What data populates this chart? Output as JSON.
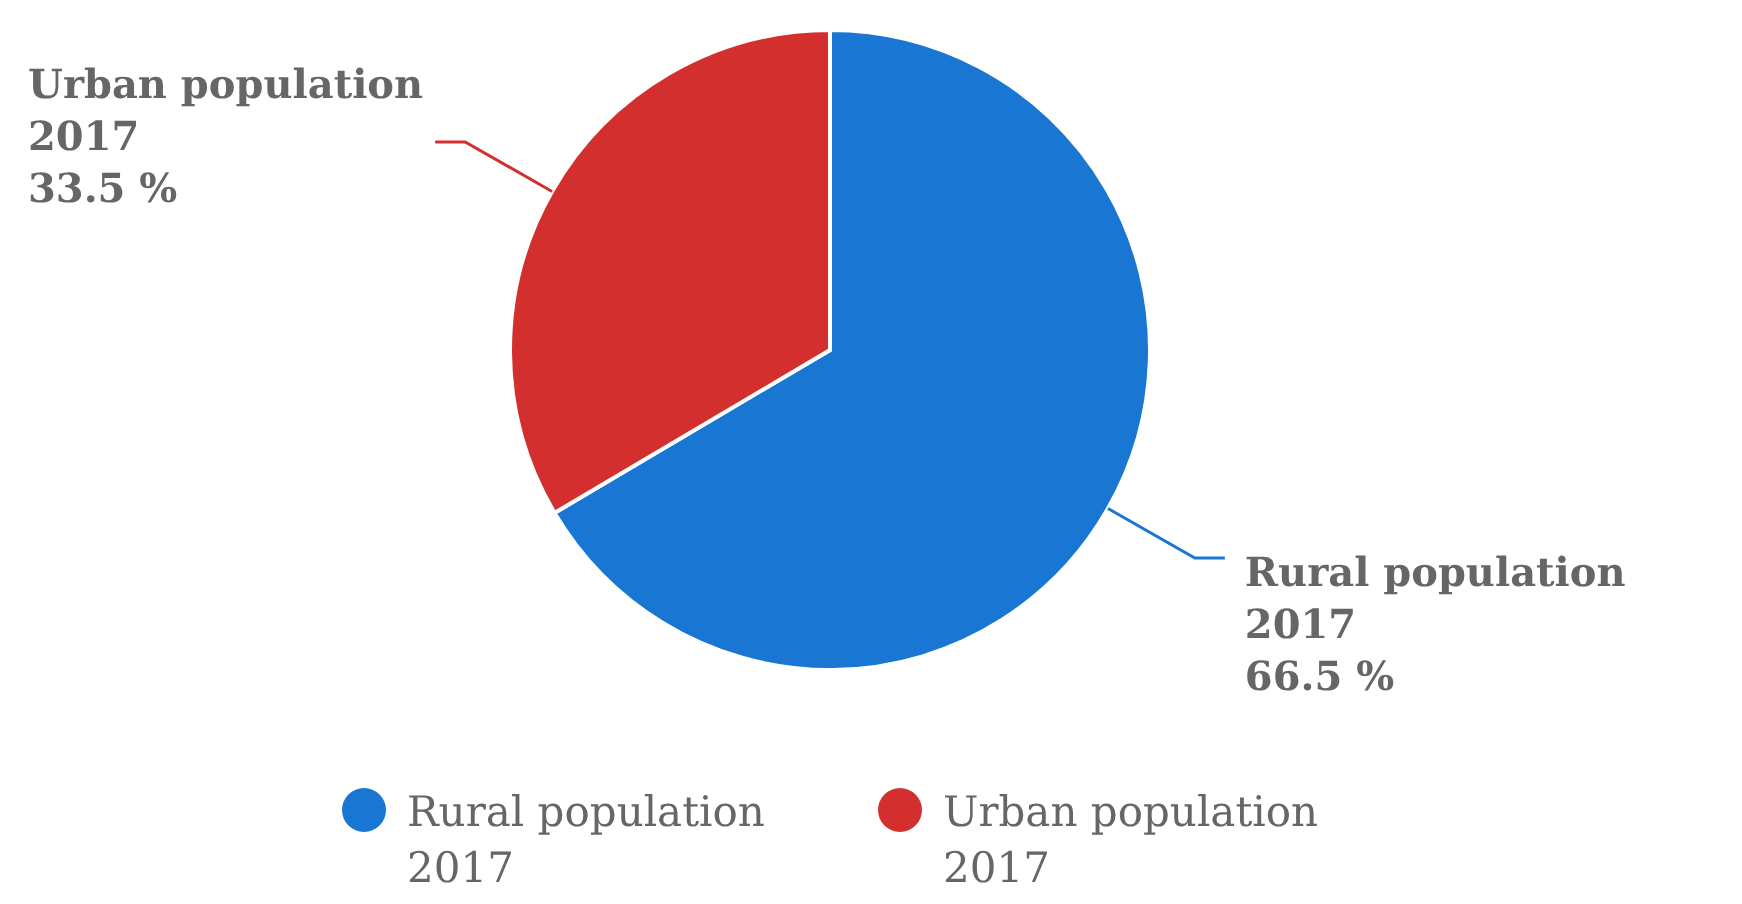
{
  "chart_data": {
    "type": "pie",
    "categories": [
      "Rural population 2017",
      "Urban population 2017"
    ],
    "values": [
      66.5,
      33.5
    ],
    "colors": [
      "#1976d2",
      "#d32f2f"
    ],
    "value_labels": [
      "66.5 %",
      "33.5 %"
    ],
    "legend": "bottom"
  }
}
